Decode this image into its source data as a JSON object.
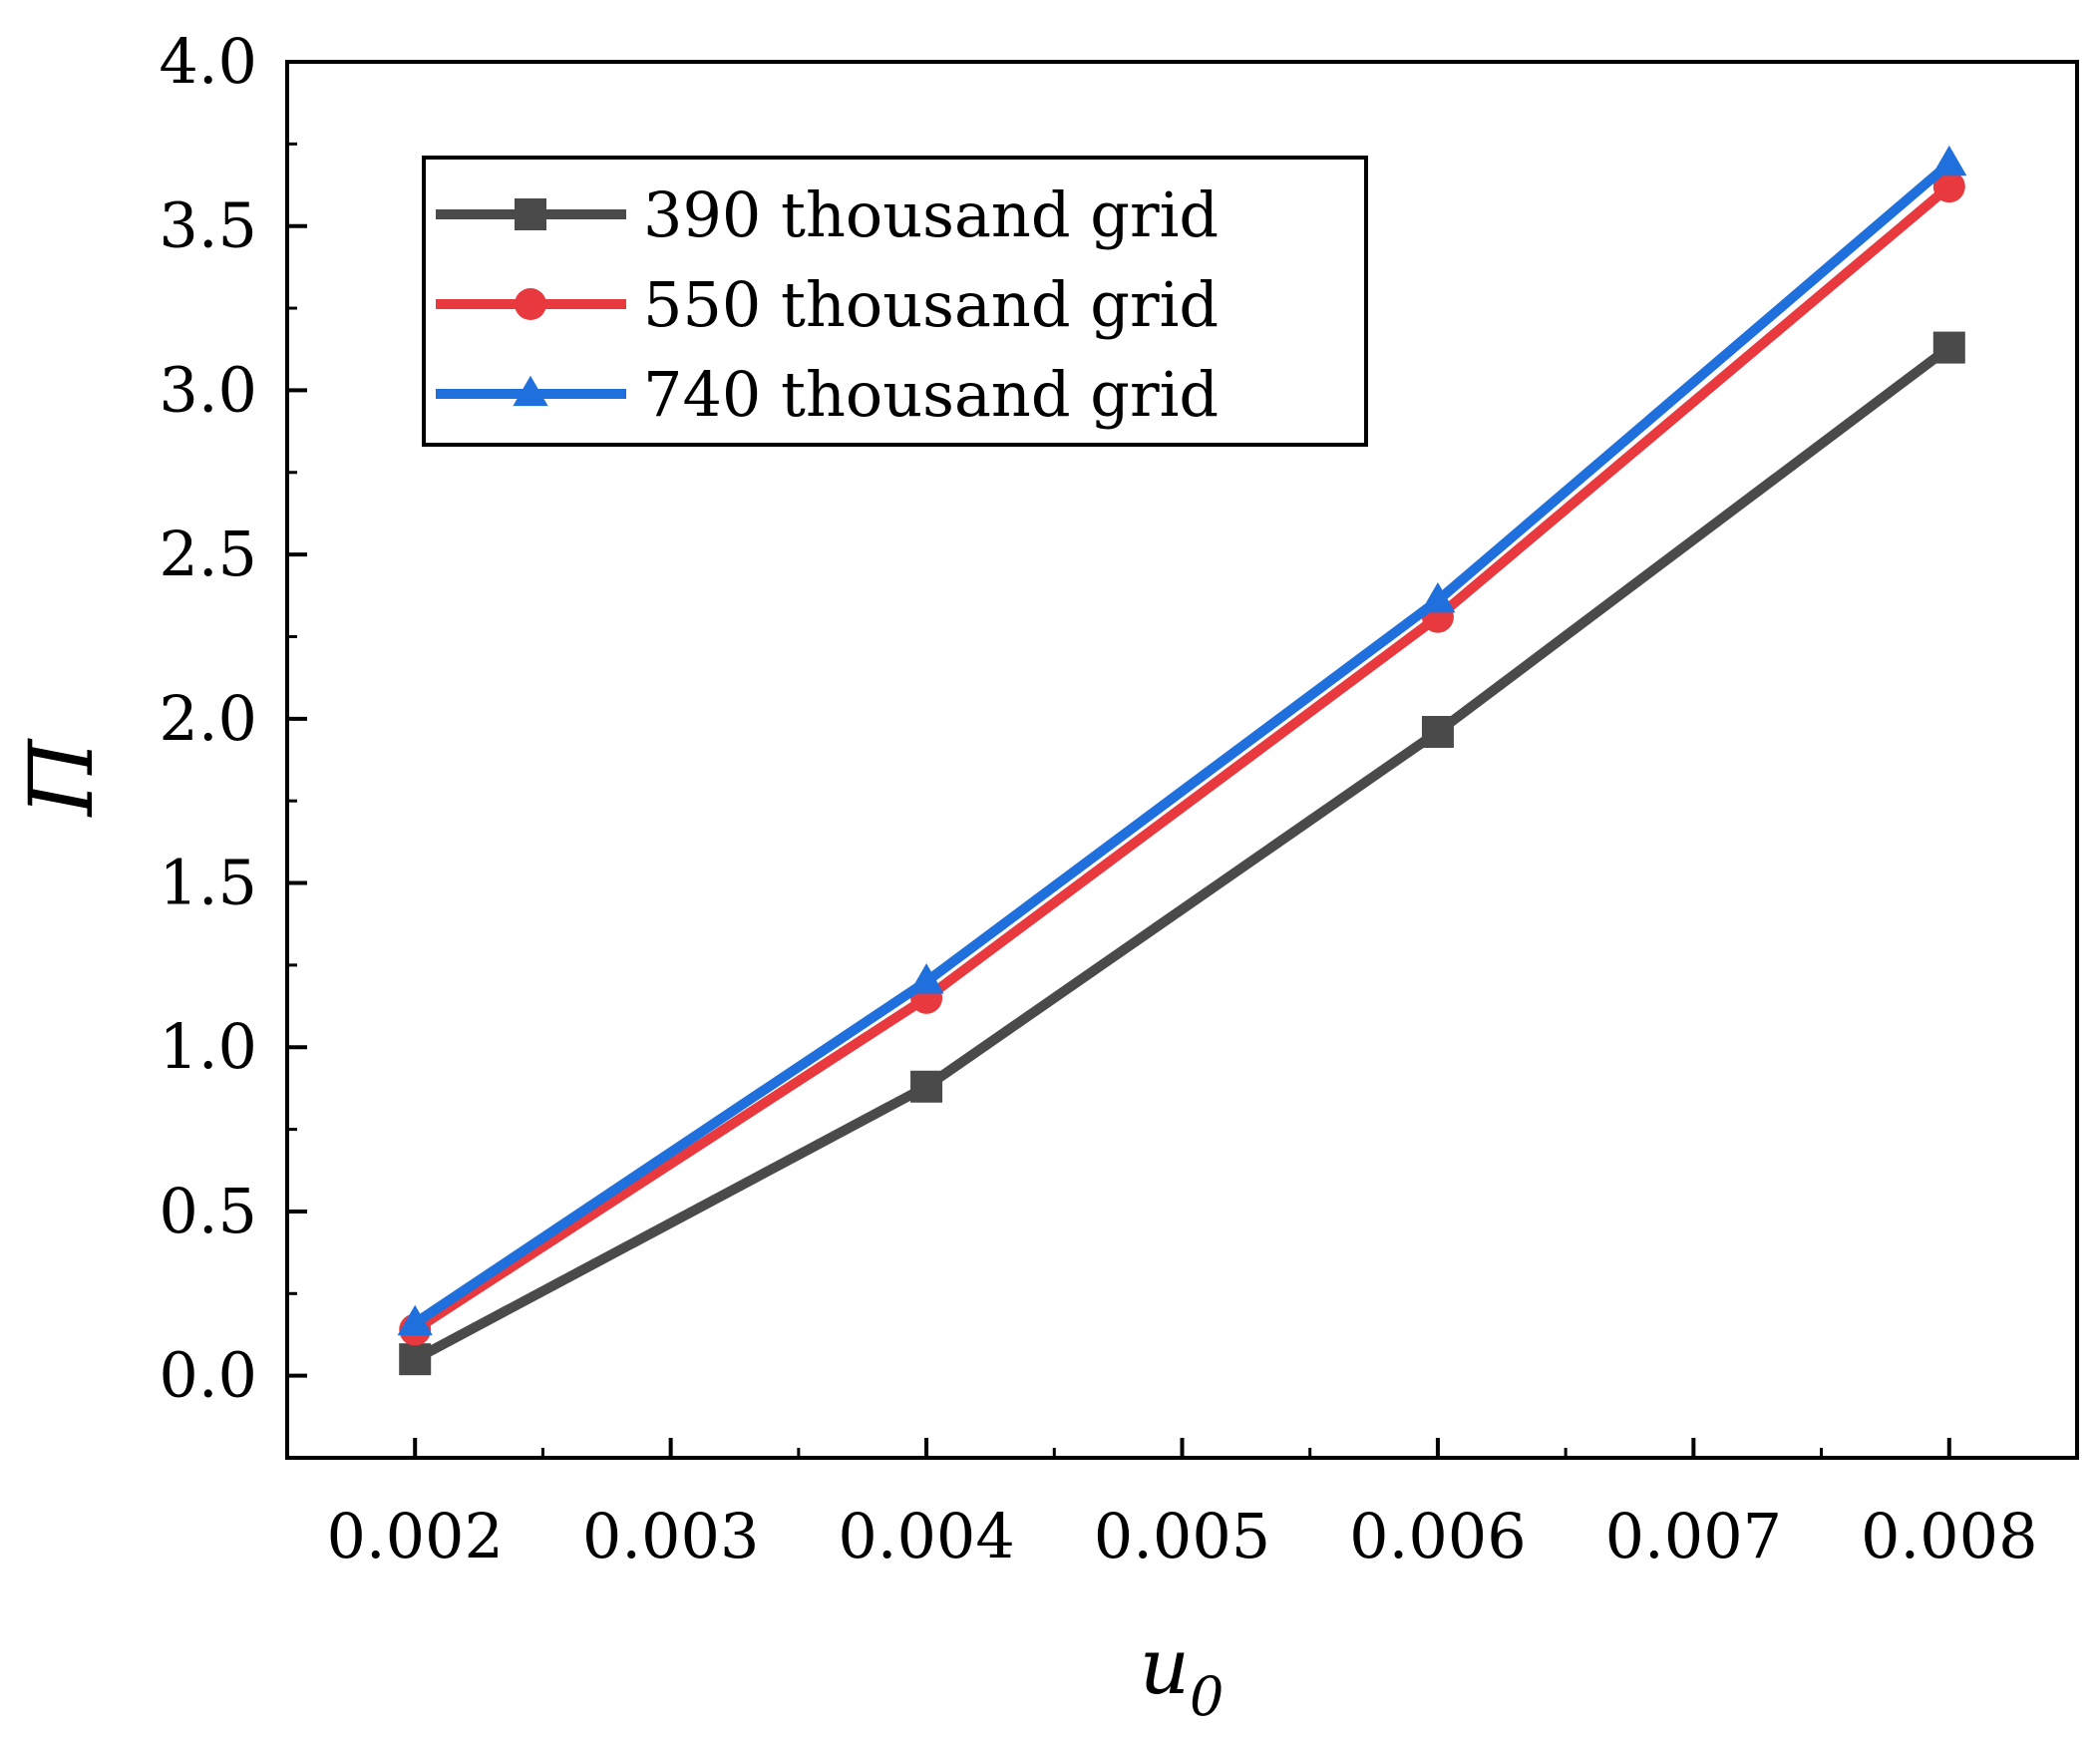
{
  "chart_data": {
    "type": "line",
    "title": "",
    "xlabel": "u",
    "xlabel_subscript": "0",
    "ylabel": "Π",
    "xlim": [
      0.0015,
      0.0085
    ],
    "ylim": [
      -0.25,
      4.0
    ],
    "x_ticks": [
      0.002,
      0.003,
      0.004,
      0.005,
      0.006,
      0.007,
      0.008
    ],
    "x_tick_labels": [
      "0.002",
      "0.003",
      "0.004",
      "0.005",
      "0.006",
      "0.007",
      "0.008"
    ],
    "y_ticks": [
      0.0,
      0.5,
      1.0,
      1.5,
      2.0,
      2.5,
      3.0,
      3.5,
      4.0
    ],
    "y_tick_labels": [
      "0.0",
      "0.5",
      "1.0",
      "1.5",
      "2.0",
      "2.5",
      "3.0",
      "3.5",
      "4.0"
    ],
    "grid": false,
    "legend_position": "top-left",
    "x": [
      0.002,
      0.004,
      0.006,
      0.008
    ],
    "series": [
      {
        "name": "390 thousand grid",
        "color": "#4a4a4a",
        "marker": "square",
        "values": [
          0.05,
          0.88,
          1.96,
          3.13
        ]
      },
      {
        "name": "550 thousand grid",
        "color": "#e8393f",
        "marker": "circle",
        "values": [
          0.14,
          1.15,
          2.31,
          3.62
        ]
      },
      {
        "name": "740 thousand grid",
        "color": "#1f6fdc",
        "marker": "triangle",
        "values": [
          0.16,
          1.2,
          2.36,
          3.69
        ]
      }
    ]
  }
}
